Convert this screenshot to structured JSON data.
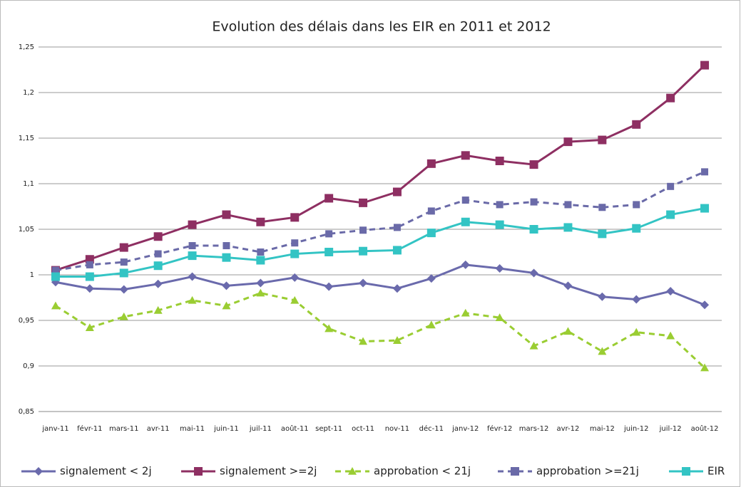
{
  "chart_data": {
    "type": "line",
    "title": "Evolution des délais dans les EIR en 2011 et 2012",
    "categories": [
      "janv-11",
      "févr-11",
      "mars-11",
      "avr-11",
      "mai-11",
      "juin-11",
      "juil-11",
      "août-11",
      "sept-11",
      "oct-11",
      "nov-11",
      "déc-11",
      "janv-12",
      "févr-12",
      "mars-12",
      "avr-12",
      "mai-12",
      "juin-12",
      "juil-12",
      "août-12"
    ],
    "series": [
      {
        "name": "signalement < 2j",
        "color": "#6a6aac",
        "marker": "diamond",
        "dashed": false,
        "values": [
          0.992,
          0.985,
          0.984,
          0.99,
          0.998,
          0.988,
          0.991,
          0.997,
          0.987,
          0.991,
          0.985,
          0.996,
          1.011,
          1.007,
          1.002,
          0.988,
          0.976,
          0.973,
          0.982,
          0.967
        ]
      },
      {
        "name": "signalement >=2j",
        "color": "#8e2f62",
        "marker": "square",
        "dashed": false,
        "values": [
          1.005,
          1.017,
          1.03,
          1.042,
          1.055,
          1.066,
          1.058,
          1.063,
          1.084,
          1.079,
          1.091,
          1.122,
          1.131,
          1.125,
          1.121,
          1.146,
          1.148,
          1.165,
          1.194,
          1.23
        ]
      },
      {
        "name": "approbation < 21j",
        "color": "#9acd32",
        "marker": "triangle",
        "dashed": true,
        "values": [
          0.966,
          0.942,
          0.954,
          0.961,
          0.972,
          0.966,
          0.98,
          0.972,
          0.941,
          0.927,
          0.928,
          0.945,
          0.958,
          0.953,
          0.922,
          0.938,
          0.916,
          0.937,
          0.933,
          0.898
        ]
      },
      {
        "name": "approbation >=21j",
        "color": "#6a6aa8",
        "marker": "square",
        "dashed": true,
        "values": [
          1.005,
          1.011,
          1.014,
          1.023,
          1.032,
          1.032,
          1.025,
          1.035,
          1.045,
          1.049,
          1.052,
          1.07,
          1.082,
          1.077,
          1.08,
          1.077,
          1.074,
          1.077,
          1.097,
          1.113
        ]
      },
      {
        "name": "EIR",
        "color": "#33c4c4",
        "marker": "square",
        "dashed": false,
        "values": [
          0.998,
          0.998,
          1.002,
          1.01,
          1.021,
          1.019,
          1.016,
          1.023,
          1.025,
          1.026,
          1.027,
          1.046,
          1.058,
          1.055,
          1.05,
          1.052,
          1.045,
          1.051,
          1.066,
          1.073
        ]
      }
    ],
    "ylim": [
      0.85,
      1.25
    ],
    "yticks": [
      {
        "value": 0.85,
        "label": "0,85"
      },
      {
        "value": 0.9,
        "label": "0,9"
      },
      {
        "value": 0.95,
        "label": "0,95"
      },
      1,
      {
        "value": 1.05,
        "label": "1,05"
      },
      {
        "value": 1.1,
        "label": "1,1"
      },
      {
        "value": 1.15,
        "label": "1,15"
      },
      {
        "value": 1.2,
        "label": "1,2"
      },
      {
        "value": 1.25,
        "label": "1,25"
      }
    ],
    "grid": true,
    "legend": "bottom"
  }
}
